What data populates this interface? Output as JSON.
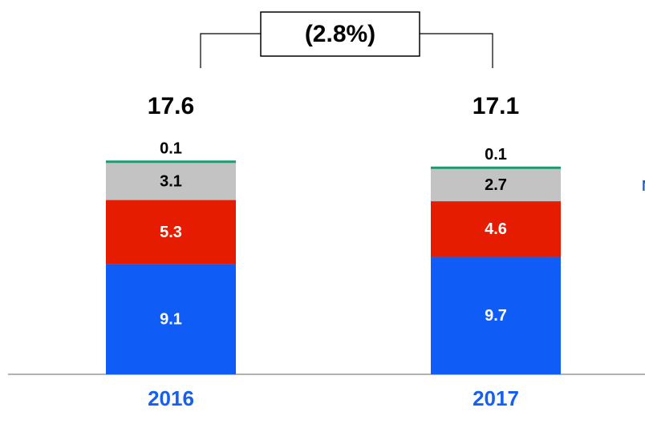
{
  "chart_data": {
    "type": "stacked-bar",
    "categories": [
      "2016",
      "2017"
    ],
    "series": [
      {
        "color": "#0f5cf7",
        "label_color": "#ffffff",
        "values": [
          9.1,
          9.7
        ]
      },
      {
        "color": "#e61c00",
        "label_color": "#ffffff",
        "values": [
          5.3,
          4.6
        ]
      },
      {
        "color": "#c3c3c3",
        "label_color": "#000000",
        "values": [
          3.1,
          2.7
        ]
      },
      {
        "color": "#1f9a6e",
        "label_color": "#000000",
        "values": [
          0.1,
          0.1
        ]
      }
    ],
    "totals": [
      17.6,
      17.1
    ],
    "change_label": "(2.8%)",
    "annotation": "N",
    "category_color": "#1560f0"
  }
}
